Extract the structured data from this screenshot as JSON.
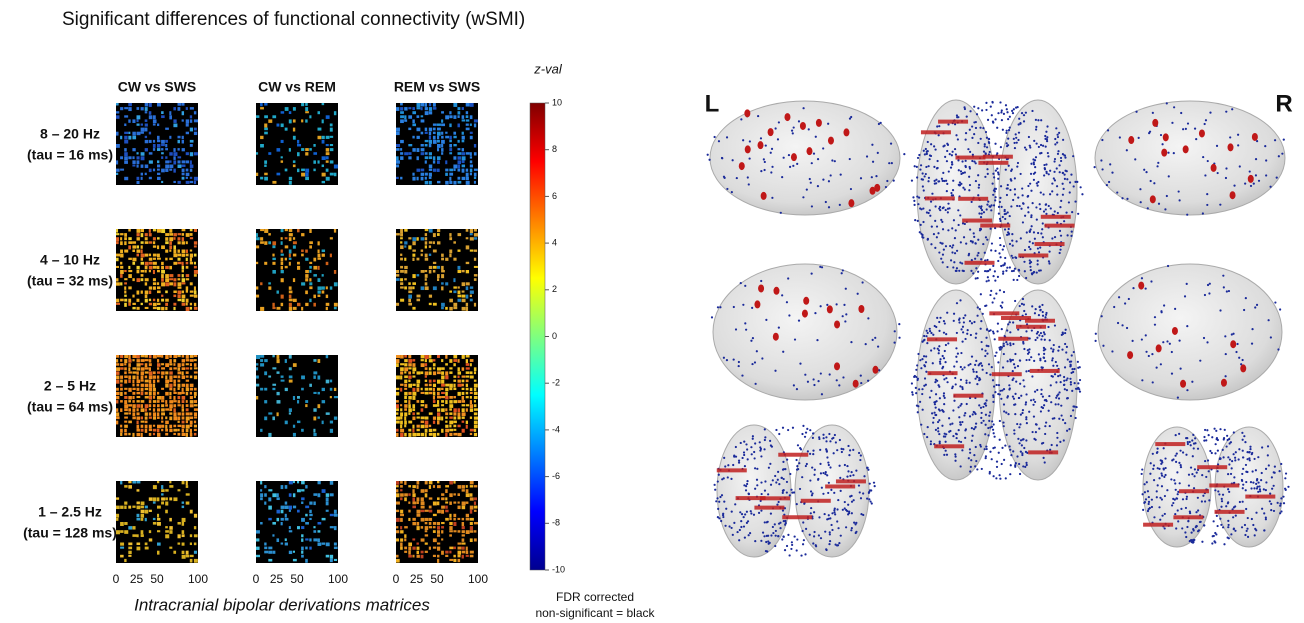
{
  "chart_data": {
    "type": "heatmap",
    "title": "Significant differences of functional connectivity (wSMI)",
    "column_titles": [
      "CW vs SWS",
      "CW vs REM",
      "REM vs SWS"
    ],
    "row_labels": [
      [
        "8 – 20 Hz",
        "(tau = 16 ms)"
      ],
      [
        "4 – 10 Hz",
        "(tau = 32 ms)"
      ],
      [
        "2 – 5 Hz",
        "(tau = 64 ms)"
      ],
      [
        "1 – 2.5 Hz",
        "(tau = 128 ms)"
      ]
    ],
    "xlim": [
      0,
      100
    ],
    "xticks": [
      0,
      25,
      50,
      100
    ],
    "x_label": "Intracranial bipolar derivations matrices",
    "colorbar": {
      "label": "z-val",
      "ylim": [
        -10,
        10
      ],
      "yticks": [
        10,
        8,
        6,
        4,
        2,
        0,
        -2,
        -4,
        -6,
        -8,
        -10
      ]
    },
    "note": [
      "FDR corrected",
      "non-significant = black"
    ],
    "brain_labels": [
      "L",
      "R"
    ]
  }
}
